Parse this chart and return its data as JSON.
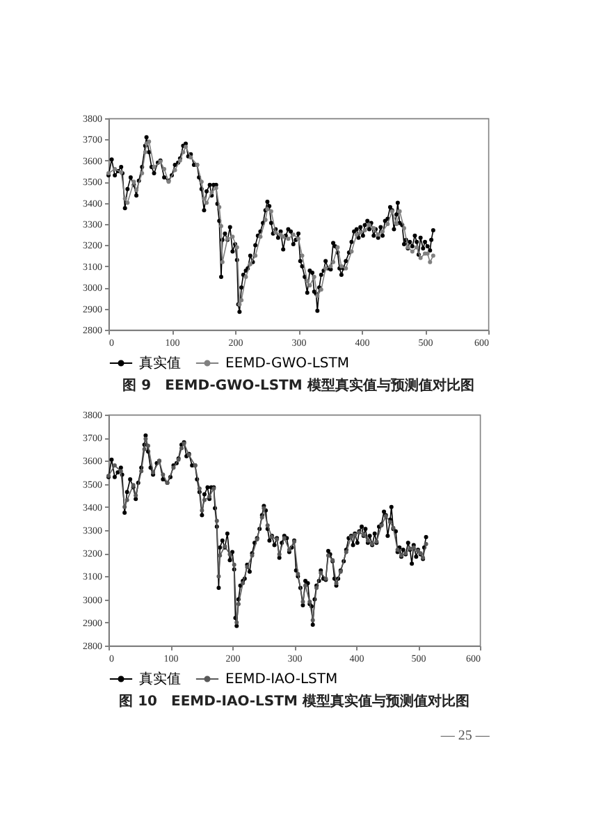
{
  "chart_data": [
    {
      "type": "line",
      "annotations": [
        "图 9　EEMD-GWO-LSTM 模型真实值与预测值对比图"
      ],
      "xlim": [
        0,
        600
      ],
      "xticks": [
        0,
        100,
        200,
        300,
        400,
        500,
        600
      ],
      "ylim": [
        2800,
        3800
      ],
      "yticks": [
        2800,
        2900,
        3000,
        3100,
        3200,
        3300,
        3400,
        3500,
        3600,
        3700,
        3800
      ],
      "legend": "bottom",
      "marker": "circle",
      "x": [
        0,
        5,
        10,
        15,
        20,
        22,
        26,
        30,
        35,
        40,
        44,
        48,
        53,
        58,
        60,
        64,
        68,
        72,
        78,
        82,
        88,
        95,
        100,
        105,
        110,
        113,
        118,
        122,
        126,
        130,
        135,
        140,
        143,
        147,
        151,
        155,
        160,
        163,
        166,
        170,
        172,
        175,
        178,
        180,
        184,
        188,
        192,
        196,
        200,
        203,
        205,
        207,
        210,
        213,
        217,
        220,
        224,
        228,
        232,
        236,
        240,
        244,
        248,
        251,
        254,
        257,
        260,
        264,
        268,
        272,
        276,
        280,
        284,
        288,
        292,
        296,
        300,
        303,
        306,
        310,
        314,
        318,
        322,
        325,
        328,
        330,
        333,
        336,
        340,
        343,
        347,
        351,
        355,
        358,
        362,
        365,
        368,
        371,
        375,
        380,
        384,
        388,
        392,
        395,
        398,
        402,
        405,
        409,
        412,
        415,
        419,
        422,
        426,
        430,
        433,
        437,
        441,
        445,
        448,
        451,
        455,
        457,
        460,
        464,
        467,
        470,
        473,
        476,
        480,
        484,
        487,
        490,
        493,
        497,
        500,
        504,
        508,
        510,
        513
      ],
      "series": [
        {
          "name": "真实值",
          "color": "#000000",
          "values": [
            3530,
            3605,
            3530,
            3550,
            3570,
            3540,
            3375,
            3465,
            3520,
            3485,
            3435,
            3505,
            3570,
            3670,
            3710,
            3640,
            3570,
            3540,
            3590,
            3600,
            3520,
            3505,
            3530,
            3580,
            3590,
            3610,
            3670,
            3680,
            3620,
            3630,
            3580,
            3580,
            3520,
            3465,
            3365,
            3455,
            3485,
            3435,
            3485,
            3485,
            3395,
            3315,
            3050,
            3225,
            3255,
            3225,
            3285,
            3170,
            3205,
            3130,
            2920,
            2885,
            3000,
            3060,
            3080,
            3090,
            3150,
            3120,
            3200,
            3245,
            3265,
            3305,
            3365,
            3405,
            3385,
            3305,
            3255,
            3275,
            3235,
            3265,
            3180,
            3245,
            3275,
            3265,
            3205,
            3225,
            3255,
            3125,
            3100,
            3050,
            2975,
            3080,
            3070,
            2980,
            2970,
            2890,
            3000,
            3060,
            3080,
            3125,
            3090,
            3085,
            3210,
            3195,
            3165,
            3090,
            3060,
            3090,
            3125,
            3165,
            3215,
            3265,
            3275,
            3235,
            3285,
            3245,
            3295,
            3315,
            3275,
            3305,
            3245,
            3275,
            3235,
            3285,
            3245,
            3315,
            3325,
            3380,
            3365,
            3275,
            3345,
            3400,
            3305,
            3295,
            3205,
            3225,
            3185,
            3215,
            3195,
            3245,
            3215,
            3155,
            3235,
            3185,
            3215,
            3195,
            3175,
            3225,
            3270
          ]
        },
        {
          "name": "EEMD-GWO-LSTM",
          "color": "#808080",
          "x": [
            0,
            10,
            20,
            26,
            30,
            40,
            44,
            53,
            58,
            60,
            64,
            72,
            82,
            88,
            95,
            105,
            113,
            118,
            122,
            130,
            140,
            147,
            151,
            155,
            163,
            170,
            175,
            178,
            180,
            188,
            196,
            203,
            207,
            210,
            217,
            224,
            232,
            240,
            248,
            251,
            257,
            264,
            272,
            276,
            284,
            292,
            300,
            306,
            314,
            318,
            325,
            330,
            336,
            343,
            351,
            355,
            362,
            368,
            375,
            384,
            392,
            398,
            405,
            412,
            419,
            426,
            433,
            441,
            448,
            455,
            460,
            467,
            473,
            480,
            487,
            493,
            500,
            504,
            508,
            513
          ],
          "values": [
            3540,
            3560,
            3545,
            3420,
            3400,
            3500,
            3460,
            3540,
            3640,
            3680,
            3690,
            3570,
            3595,
            3560,
            3500,
            3555,
            3600,
            3640,
            3665,
            3615,
            3580,
            3500,
            3420,
            3400,
            3450,
            3470,
            3380,
            3290,
            3120,
            3230,
            3240,
            3190,
            2920,
            2940,
            3050,
            3110,
            3150,
            3240,
            3320,
            3370,
            3360,
            3260,
            3250,
            3240,
            3230,
            3250,
            3230,
            3150,
            3030,
            3010,
            3050,
            2960,
            2990,
            3090,
            3100,
            3120,
            3190,
            3100,
            3090,
            3170,
            3250,
            3260,
            3270,
            3295,
            3280,
            3250,
            3265,
            3300,
            3360,
            3300,
            3360,
            3280,
            3190,
            3170,
            3190,
            3140,
            3160,
            3160,
            3120,
            3150
          ]
        }
      ]
    },
    {
      "type": "line",
      "annotations": [
        "图 10　EEMD-IAO-LSTM 模型真实值与预测值对比图",
        "— 25 —"
      ],
      "xlim": [
        0,
        600
      ],
      "xticks": [
        0,
        100,
        200,
        300,
        400,
        500,
        600
      ],
      "ylim": [
        2800,
        3800
      ],
      "yticks": [
        2800,
        2900,
        3000,
        3100,
        3200,
        3300,
        3400,
        3500,
        3600,
        3700,
        3800
      ],
      "legend": "bottom",
      "marker": "circle",
      "x": [
        0,
        5,
        10,
        15,
        20,
        22,
        26,
        30,
        35,
        40,
        44,
        48,
        53,
        58,
        60,
        64,
        68,
        72,
        78,
        82,
        88,
        95,
        100,
        105,
        110,
        113,
        118,
        122,
        126,
        130,
        135,
        140,
        143,
        147,
        151,
        155,
        160,
        163,
        166,
        170,
        172,
        175,
        178,
        180,
        184,
        188,
        192,
        196,
        200,
        203,
        205,
        207,
        210,
        213,
        217,
        220,
        224,
        228,
        232,
        236,
        240,
        244,
        248,
        251,
        254,
        257,
        260,
        264,
        268,
        272,
        276,
        280,
        284,
        288,
        292,
        296,
        300,
        303,
        306,
        310,
        314,
        318,
        322,
        325,
        328,
        330,
        333,
        336,
        340,
        343,
        347,
        351,
        355,
        358,
        362,
        365,
        368,
        371,
        375,
        380,
        384,
        388,
        392,
        395,
        398,
        402,
        405,
        409,
        412,
        415,
        419,
        422,
        426,
        430,
        433,
        437,
        441,
        445,
        448,
        451,
        455,
        457,
        460,
        464,
        467,
        470,
        473,
        476,
        480,
        484,
        487,
        490,
        493,
        497,
        500,
        504,
        508,
        510,
        513
      ],
      "series": [
        {
          "name": "真实值",
          "color": "#000000",
          "values": [
            3530,
            3605,
            3530,
            3550,
            3570,
            3540,
            3375,
            3465,
            3520,
            3485,
            3435,
            3505,
            3570,
            3670,
            3710,
            3640,
            3570,
            3540,
            3590,
            3600,
            3520,
            3505,
            3530,
            3580,
            3590,
            3610,
            3670,
            3680,
            3620,
            3630,
            3580,
            3580,
            3520,
            3465,
            3365,
            3455,
            3485,
            3435,
            3485,
            3485,
            3395,
            3315,
            3050,
            3225,
            3255,
            3225,
            3285,
            3170,
            3205,
            3130,
            2920,
            2885,
            3000,
            3060,
            3080,
            3090,
            3150,
            3120,
            3200,
            3245,
            3265,
            3305,
            3365,
            3405,
            3385,
            3305,
            3255,
            3275,
            3235,
            3265,
            3180,
            3245,
            3275,
            3265,
            3205,
            3225,
            3255,
            3125,
            3100,
            3050,
            2975,
            3080,
            3070,
            2980,
            2970,
            2890,
            3000,
            3060,
            3080,
            3125,
            3090,
            3085,
            3210,
            3195,
            3165,
            3090,
            3060,
            3090,
            3125,
            3165,
            3215,
            3265,
            3275,
            3235,
            3285,
            3245,
            3295,
            3315,
            3275,
            3305,
            3245,
            3275,
            3235,
            3285,
            3245,
            3315,
            3325,
            3380,
            3365,
            3275,
            3345,
            3400,
            3305,
            3295,
            3205,
            3225,
            3185,
            3215,
            3195,
            3245,
            3215,
            3155,
            3235,
            3185,
            3215,
            3195,
            3175,
            3225,
            3270
          ]
        },
        {
          "name": "EEMD-IAO-LSTM",
          "color": "#595959",
          "x": [
            0,
            10,
            20,
            26,
            30,
            40,
            44,
            53,
            58,
            60,
            64,
            72,
            82,
            88,
            95,
            105,
            113,
            118,
            122,
            130,
            140,
            147,
            151,
            155,
            163,
            170,
            175,
            178,
            180,
            188,
            196,
            203,
            207,
            210,
            217,
            224,
            232,
            240,
            248,
            251,
            257,
            264,
            272,
            276,
            284,
            292,
            300,
            306,
            314,
            318,
            325,
            330,
            336,
            343,
            351,
            355,
            362,
            368,
            375,
            384,
            392,
            398,
            405,
            412,
            419,
            426,
            433,
            441,
            448,
            455,
            460,
            467,
            473,
            480,
            487,
            493,
            500,
            504,
            508,
            513
          ],
          "values": [
            3535,
            3580,
            3555,
            3400,
            3430,
            3495,
            3450,
            3555,
            3650,
            3695,
            3665,
            3550,
            3600,
            3540,
            3505,
            3570,
            3605,
            3655,
            3675,
            3625,
            3580,
            3480,
            3385,
            3430,
            3445,
            3480,
            3340,
            3100,
            3190,
            3230,
            3195,
            3150,
            2900,
            2980,
            3070,
            3140,
            3190,
            3260,
            3355,
            3395,
            3320,
            3270,
            3260,
            3195,
            3265,
            3215,
            3250,
            3110,
            2990,
            3060,
            2990,
            2910,
            3050,
            3115,
            3090,
            3190,
            3170,
            3070,
            3120,
            3205,
            3270,
            3280,
            3290,
            3280,
            3255,
            3240,
            3250,
            3320,
            3360,
            3335,
            3310,
            3215,
            3190,
            3200,
            3220,
            3225,
            3210,
            3200,
            3180,
            3240
          ]
        }
      ]
    }
  ]
}
